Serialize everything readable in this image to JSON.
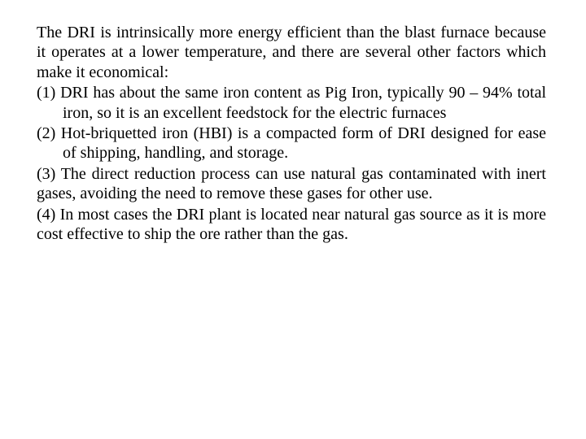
{
  "text": {
    "intro": "The DRI is intrinsically more energy efficient than the blast furnace because it operates at a lower temperature, and there are several other factors which make it economical:",
    "item1_marker": "(1) ",
    "item1_body": "DRI has about the same iron content as Pig Iron, typically 90 – 94% total iron, so it is an excellent feedstock for the electric furnaces",
    "item2_marker": "(2) ",
    "item2_body": "Hot-briquetted iron (HBI) is a compacted form of DRI designed for ease of shipping, handling, and storage.",
    "item3": "(3) The direct reduction process can use natural gas contaminated with inert gases, avoiding the need to remove these gases for other use.",
    "item4": "(4) In most cases the DRI plant is located near natural gas source as it is more cost effective to ship the ore rather than the gas."
  },
  "style": {
    "font_family": "Times New Roman",
    "font_size_pt": 15,
    "text_color": "#000000",
    "background_color": "#ffffff",
    "alignment": "justify"
  }
}
